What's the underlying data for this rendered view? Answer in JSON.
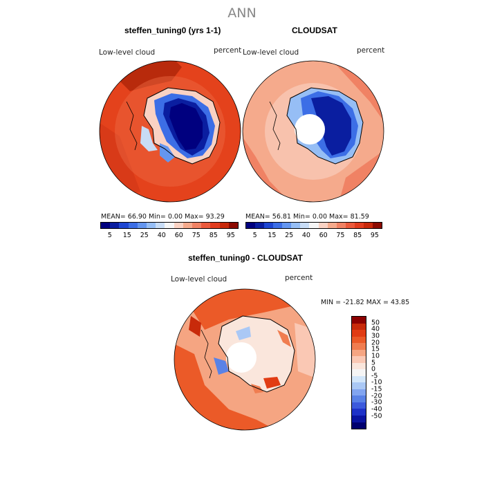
{
  "figure": {
    "title": "ANN"
  },
  "panels": [
    {
      "title": "steffen_tuning0 (yrs 1-1)",
      "left_label": "Low-level cloud",
      "right_label": "percent",
      "stats": "MEAN=  66.90   Min=   0.00   Max=  93.29"
    },
    {
      "title": "CLOUDSAT",
      "left_label": "Low-level cloud",
      "right_label": "percent",
      "stats": "MEAN=  56.81   Min=   0.00   Max=  81.59"
    },
    {
      "title": "steffen_tuning0 - CLOUDSAT",
      "left_label": "Low-level cloud",
      "right_label": "percent",
      "stats": "MIN = -21.82 MAX =  43.85"
    }
  ],
  "colorbar_abs": {
    "colors": [
      "#00007f",
      "#0a1ea0",
      "#1e46d2",
      "#3c6ee6",
      "#6496f0",
      "#96bef5",
      "#c8dcf5",
      "#f5f5f5",
      "#fad2c3",
      "#f5aa8c",
      "#f08264",
      "#eb5a3c",
      "#e13c1e",
      "#c8280a",
      "#8c0a00"
    ],
    "ticks": [
      "5",
      "15",
      "25",
      "40",
      "60",
      "75",
      "85",
      "95"
    ]
  },
  "colorbar_diff": {
    "colors": [
      "#8c0000",
      "#c82a0a",
      "#e13c14",
      "#eb5a28",
      "#f07d50",
      "#f5a582",
      "#fac8b4",
      "#fae6dc",
      "#f5f5f5",
      "#d2e6fa",
      "#aac8f5",
      "#82a5f0",
      "#5a82e6",
      "#3c5adc",
      "#1e32c8",
      "#0a14a0",
      "#00006e"
    ],
    "ticks": [
      "50",
      "40",
      "30",
      "20",
      "15",
      "10",
      "5",
      "0",
      "-5",
      "-10",
      "-15",
      "-20",
      "-30",
      "-40",
      "-50"
    ]
  }
}
